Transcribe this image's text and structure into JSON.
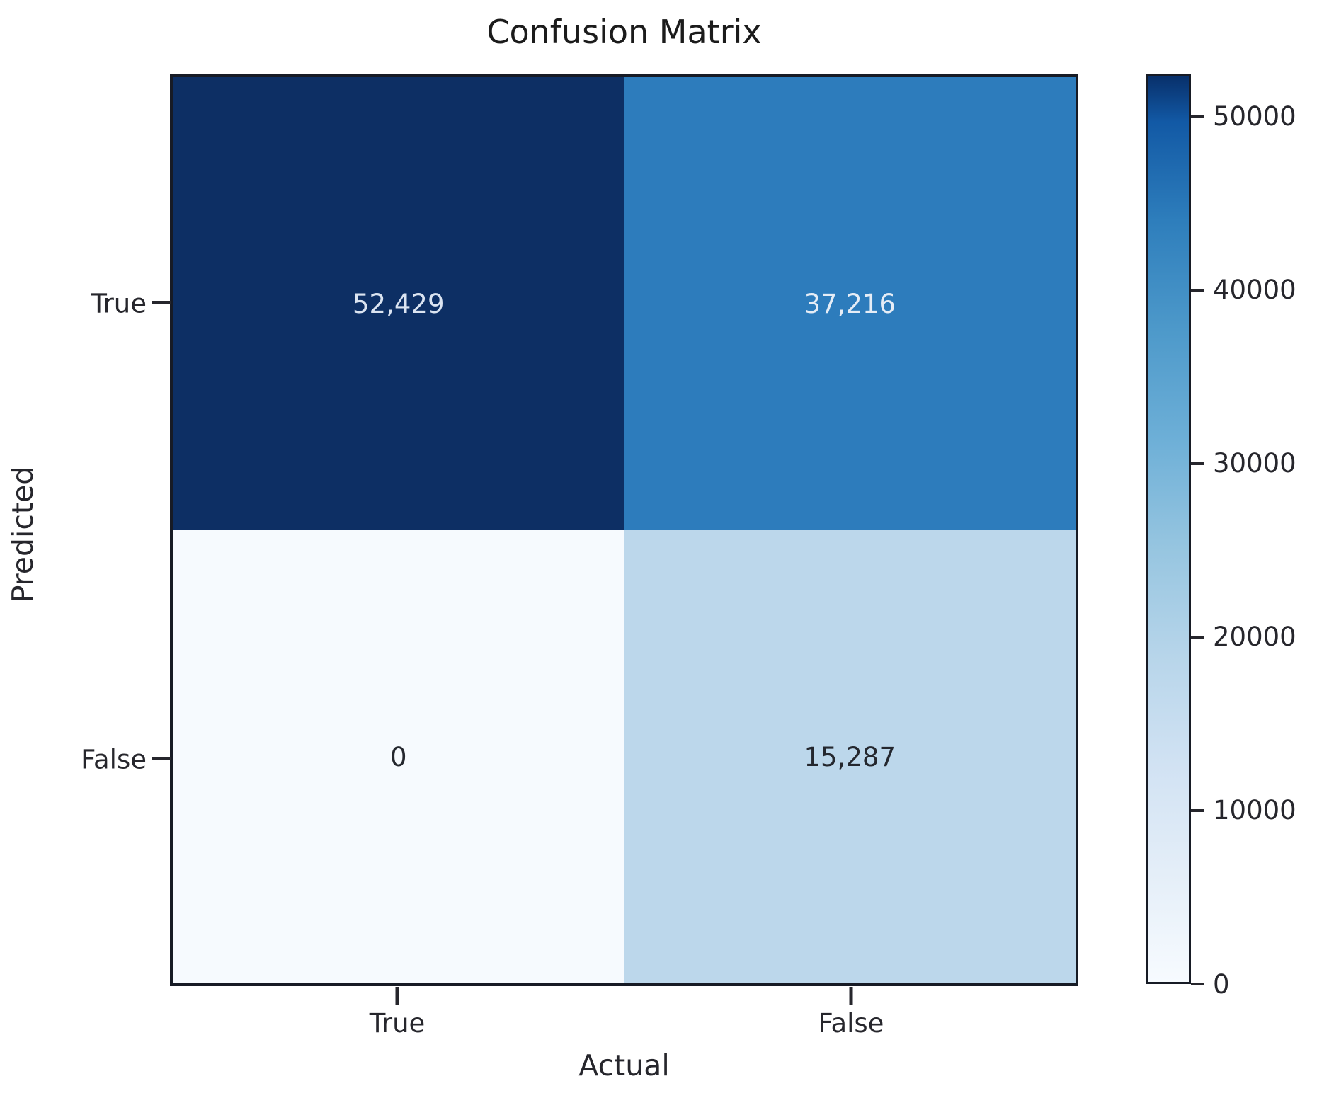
{
  "chart_data": {
    "type": "heatmap",
    "title": "Confusion Matrix",
    "xlabel": "Actual",
    "ylabel": "Predicted",
    "x_categories": [
      "True",
      "False"
    ],
    "y_categories": [
      "True",
      "False"
    ],
    "matrix": [
      [
        52429,
        37216
      ],
      [
        0,
        15287
      ]
    ],
    "cell_labels": [
      [
        "52,429",
        "37,216"
      ],
      [
        "0",
        "15,287"
      ]
    ],
    "vmin": 0,
    "vmax": 52429,
    "colormap": "Blues",
    "cell_colors": [
      [
        "#0d2f64",
        "#2d7cbc"
      ],
      [
        "#f6fafe",
        "#bcd7eb"
      ]
    ],
    "cell_text_colors": [
      [
        "#dbe4f1",
        "#e6edf6"
      ],
      [
        "#24272e",
        "#24272e"
      ]
    ],
    "colorbar": {
      "position": "right",
      "ticks": [
        0,
        10000,
        20000,
        30000,
        40000,
        50000
      ],
      "tick_labels": [
        "0",
        "10000",
        "20000",
        "30000",
        "40000",
        "50000"
      ]
    },
    "legend": "none",
    "grid": "off"
  }
}
